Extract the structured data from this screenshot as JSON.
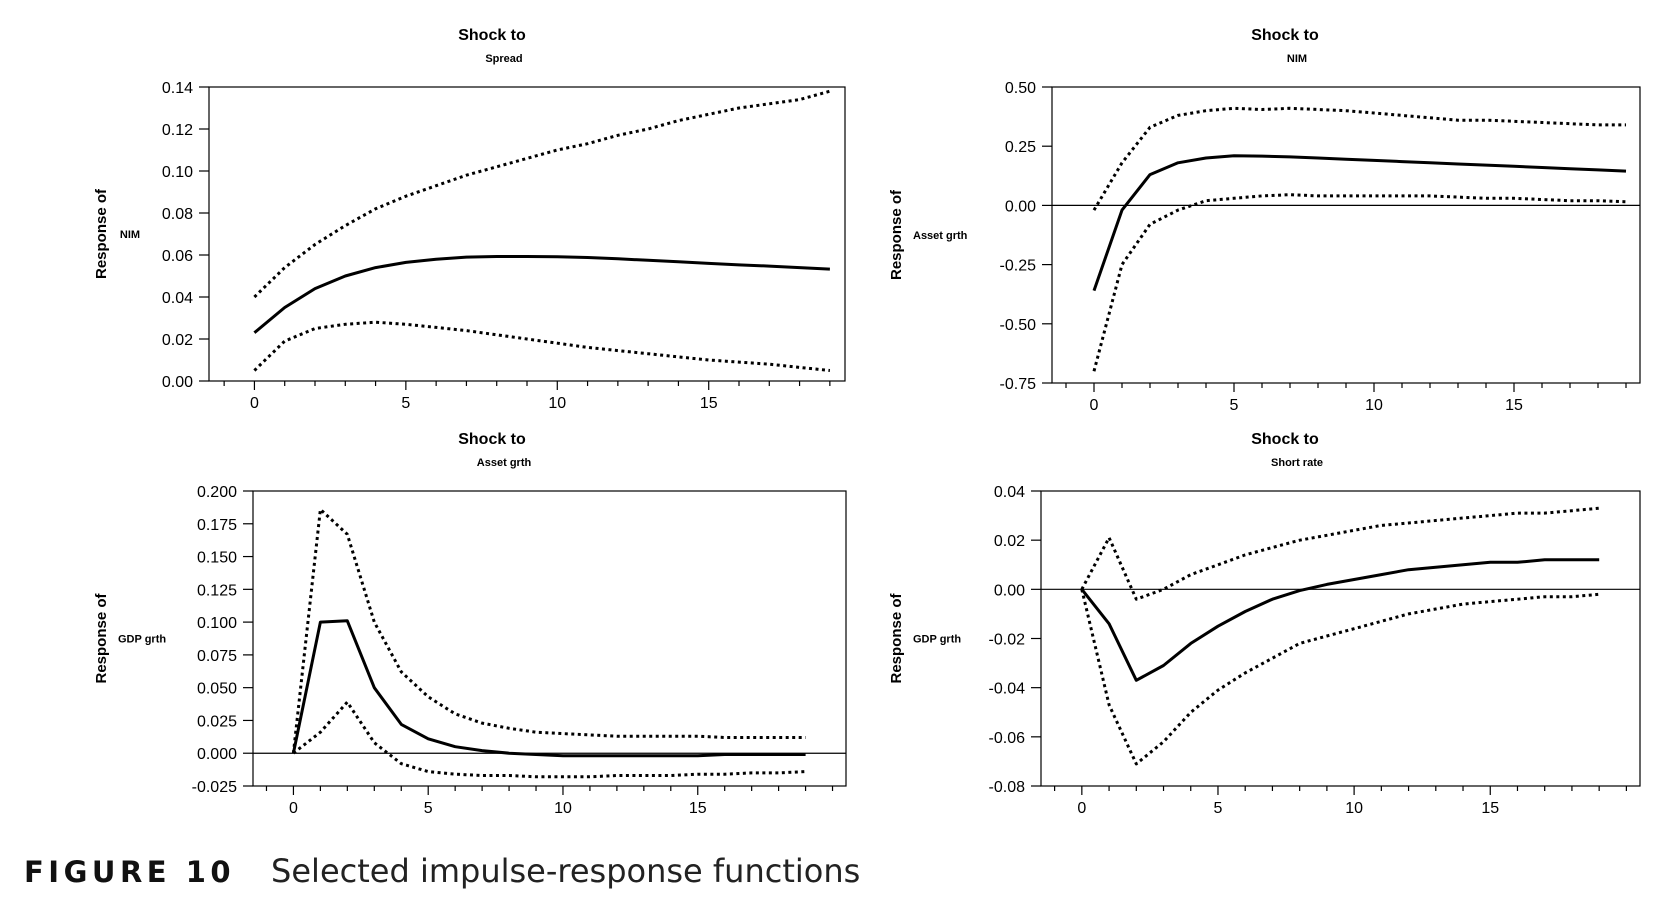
{
  "figure": {
    "label": "FIGURE 10",
    "title": "Selected impulse-response functions"
  },
  "chart_data": [
    {
      "type": "line",
      "title": "Shock to",
      "subtitle": "Spread",
      "ylabel": "Response of",
      "ylabel_variable": "NIM",
      "xlim": [
        -1.5,
        19.5
      ],
      "ylim": [
        0,
        0.14
      ],
      "xticks": [
        0,
        5,
        10,
        15
      ],
      "yticks": [
        0,
        0.02,
        0.04,
        0.06,
        0.08,
        0.1,
        0.12,
        0.14
      ],
      "ytick_labels": [
        "0.00",
        "0.02",
        "0.04",
        "0.06",
        "0.08",
        "0.10",
        "0.12",
        "0.14"
      ],
      "zero_line": false,
      "x": [
        0,
        1,
        2,
        3,
        4,
        5,
        6,
        7,
        8,
        9,
        10,
        11,
        12,
        13,
        14,
        15,
        16,
        17,
        18,
        19
      ],
      "series": [
        {
          "name": "response",
          "style": "solid",
          "values": [
            0.023,
            0.035,
            0.044,
            0.05,
            0.054,
            0.0565,
            0.058,
            0.059,
            0.0593,
            0.0593,
            0.0592,
            0.0588,
            0.0582,
            0.0575,
            0.0568,
            0.056,
            0.0553,
            0.0547,
            0.054,
            0.0533
          ]
        },
        {
          "name": "upper band",
          "style": "dotted",
          "values": [
            0.04,
            0.054,
            0.065,
            0.074,
            0.082,
            0.088,
            0.093,
            0.098,
            0.102,
            0.106,
            0.11,
            0.113,
            0.117,
            0.12,
            0.124,
            0.127,
            0.13,
            0.132,
            0.134,
            0.138
          ]
        },
        {
          "name": "lower band",
          "style": "dotted",
          "values": [
            0.005,
            0.019,
            0.025,
            0.027,
            0.028,
            0.027,
            0.0255,
            0.024,
            0.022,
            0.02,
            0.018,
            0.016,
            0.0145,
            0.013,
            0.0115,
            0.01,
            0.009,
            0.008,
            0.0065,
            0.005
          ]
        }
      ]
    },
    {
      "type": "line",
      "title": "Shock to",
      "subtitle": "NIM",
      "ylabel": "Response of",
      "ylabel_variable": "Asset grth",
      "xlim": [
        -1.5,
        19.5
      ],
      "ylim": [
        -0.75,
        0.5
      ],
      "xticks": [
        0,
        5,
        10,
        15
      ],
      "yticks": [
        -0.75,
        -0.5,
        -0.25,
        0,
        0.25,
        0.5
      ],
      "ytick_labels": [
        "-0.75",
        "-0.50",
        "-0.25",
        "0.00",
        "0.25",
        "0.50"
      ],
      "zero_line": true,
      "x": [
        0,
        1,
        2,
        3,
        4,
        5,
        6,
        7,
        8,
        9,
        10,
        11,
        12,
        13,
        14,
        15,
        16,
        17,
        18,
        19
      ],
      "series": [
        {
          "name": "response",
          "style": "solid",
          "values": [
            -0.36,
            -0.02,
            0.13,
            0.18,
            0.2,
            0.21,
            0.208,
            0.205,
            0.2,
            0.195,
            0.19,
            0.185,
            0.18,
            0.175,
            0.17,
            0.165,
            0.16,
            0.155,
            0.15,
            0.145
          ]
        },
        {
          "name": "upper band",
          "style": "dotted",
          "values": [
            -0.02,
            0.18,
            0.33,
            0.38,
            0.4,
            0.41,
            0.405,
            0.41,
            0.405,
            0.4,
            0.39,
            0.38,
            0.37,
            0.36,
            0.36,
            0.355,
            0.35,
            0.345,
            0.34,
            0.34
          ]
        },
        {
          "name": "lower band",
          "style": "dotted",
          "values": [
            -0.7,
            -0.25,
            -0.08,
            -0.02,
            0.02,
            0.03,
            0.04,
            0.045,
            0.04,
            0.04,
            0.04,
            0.04,
            0.04,
            0.035,
            0.03,
            0.03,
            0.025,
            0.02,
            0.02,
            0.015
          ]
        }
      ]
    },
    {
      "type": "line",
      "title": "Shock to",
      "subtitle": "Asset grth",
      "ylabel": "Response of",
      "ylabel_variable": "GDP grth",
      "xlim": [
        -1.5,
        20.5
      ],
      "ylim": [
        -0.025,
        0.2
      ],
      "xticks": [
        0,
        5,
        10,
        15
      ],
      "yticks": [
        -0.025,
        0,
        0.025,
        0.05,
        0.075,
        0.1,
        0.125,
        0.15,
        0.175,
        0.2
      ],
      "ytick_labels": [
        "-0.025",
        "0.000",
        "0.025",
        "0.050",
        "0.075",
        "0.100",
        "0.125",
        "0.150",
        "0.175",
        "0.200"
      ],
      "zero_line": true,
      "x": [
        0,
        1,
        2,
        3,
        4,
        5,
        6,
        7,
        8,
        9,
        10,
        11,
        12,
        13,
        14,
        15,
        16,
        17,
        18,
        19
      ],
      "series": [
        {
          "name": "response",
          "style": "solid",
          "values": [
            0.0,
            0.1,
            0.101,
            0.05,
            0.022,
            0.011,
            0.005,
            0.002,
            0.0,
            -0.001,
            -0.002,
            -0.002,
            -0.002,
            -0.002,
            -0.002,
            -0.002,
            -0.001,
            -0.001,
            -0.001,
            -0.001
          ]
        },
        {
          "name": "upper band",
          "style": "dotted",
          "values": [
            0.0,
            0.186,
            0.167,
            0.1,
            0.062,
            0.043,
            0.03,
            0.023,
            0.019,
            0.016,
            0.015,
            0.014,
            0.013,
            0.013,
            0.013,
            0.013,
            0.012,
            0.012,
            0.012,
            0.012
          ]
        },
        {
          "name": "lower band",
          "style": "dotted",
          "values": [
            0.0,
            0.016,
            0.039,
            0.008,
            -0.008,
            -0.014,
            -0.016,
            -0.017,
            -0.017,
            -0.018,
            -0.018,
            -0.018,
            -0.017,
            -0.017,
            -0.017,
            -0.016,
            -0.016,
            -0.015,
            -0.015,
            -0.014
          ]
        }
      ]
    },
    {
      "type": "line",
      "title": "Shock to",
      "subtitle": "Short rate",
      "ylabel": "Response of",
      "ylabel_variable": "GDP grth",
      "xlim": [
        -1.5,
        20.5
      ],
      "ylim": [
        -0.08,
        0.04
      ],
      "xticks": [
        0,
        5,
        10,
        15
      ],
      "yticks": [
        -0.08,
        -0.06,
        -0.04,
        -0.02,
        0,
        0.02,
        0.04
      ],
      "ytick_labels": [
        "-0.08",
        "-0.06",
        "-0.04",
        "-0.02",
        "0.00",
        "0.02",
        "0.04"
      ],
      "zero_line": true,
      "x": [
        0,
        1,
        2,
        3,
        4,
        5,
        6,
        7,
        8,
        9,
        10,
        11,
        12,
        13,
        14,
        15,
        16,
        17,
        18,
        19
      ],
      "series": [
        {
          "name": "response",
          "style": "solid",
          "values": [
            0.0,
            -0.014,
            -0.037,
            -0.031,
            -0.022,
            -0.015,
            -0.009,
            -0.004,
            -0.0005,
            0.002,
            0.004,
            0.006,
            0.008,
            0.009,
            0.01,
            0.011,
            0.011,
            0.012,
            0.012,
            0.012
          ]
        },
        {
          "name": "upper band",
          "style": "dotted",
          "values": [
            0.0,
            0.021,
            -0.004,
            0.0,
            0.006,
            0.01,
            0.014,
            0.017,
            0.02,
            0.022,
            0.024,
            0.026,
            0.027,
            0.028,
            0.029,
            0.03,
            0.031,
            0.031,
            0.032,
            0.033
          ]
        },
        {
          "name": "lower band",
          "style": "dotted",
          "values": [
            0.0,
            -0.047,
            -0.071,
            -0.062,
            -0.05,
            -0.041,
            -0.034,
            -0.028,
            -0.022,
            -0.019,
            -0.016,
            -0.013,
            -0.01,
            -0.008,
            -0.006,
            -0.005,
            -0.004,
            -0.003,
            -0.003,
            -0.002
          ]
        }
      ]
    }
  ]
}
